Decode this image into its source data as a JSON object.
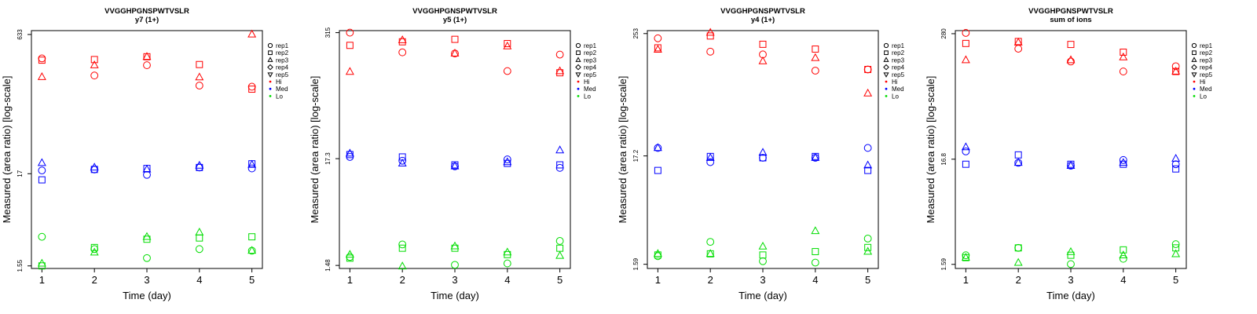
{
  "chart_data": [
    {
      "type": "scatter",
      "title": "VVGGHPGNSPWTVSLR",
      "subtitle": "y7 (1+)",
      "xlabel": "Time (day)",
      "ylabel": "Measured (area ratio) [log-scale]",
      "log_y": true,
      "x_ticks": [
        "1",
        "2",
        "3",
        "4",
        "5"
      ],
      "y_ticks": [
        {
          "value": 1.55,
          "label": "1.55"
        },
        {
          "value": 17,
          "label": "17"
        },
        {
          "value": 633,
          "label": "633"
        }
      ],
      "xlim": [
        0.8,
        5.2
      ],
      "ylim": [
        1.45,
        700
      ],
      "legend": {
        "position": "right",
        "replicates": [
          "rep1",
          "rep2",
          "rep3",
          "rep4",
          "rep5"
        ],
        "groups": [
          "Hi",
          "Med",
          "Lo"
        ]
      },
      "series": [
        {
          "group": "Hi",
          "replicate": "rep1",
          "x": [
            1,
            2,
            3,
            4,
            5
          ],
          "y": [
            340,
            218,
            285,
            168,
            163
          ]
        },
        {
          "group": "Hi",
          "replicate": "rep2",
          "x": [
            1,
            2,
            3,
            4,
            5
          ],
          "y": [
            325,
            330,
            355,
            290,
            153
          ]
        },
        {
          "group": "Hi",
          "replicate": "rep3",
          "x": [
            1,
            2,
            3,
            4,
            5
          ],
          "y": [
            210,
            285,
            355,
            208,
            635
          ]
        },
        {
          "group": "Med",
          "replicate": "rep1",
          "x": [
            1,
            2,
            3,
            4,
            5
          ],
          "y": [
            18.5,
            19,
            16.5,
            20,
            19.5
          ]
        },
        {
          "group": "Med",
          "replicate": "rep2",
          "x": [
            1,
            2,
            3,
            4,
            5
          ],
          "y": [
            14.5,
            19,
            19.5,
            20,
            22
          ]
        },
        {
          "group": "Med",
          "replicate": "rep3",
          "x": [
            1,
            2,
            3,
            4,
            5
          ],
          "y": [
            22.5,
            20,
            19,
            21,
            21.5
          ]
        },
        {
          "group": "Lo",
          "replicate": "rep1",
          "x": [
            1,
            2,
            3,
            4,
            5
          ],
          "y": [
            3.3,
            2.4,
            1.9,
            2.4,
            2.3
          ]
        },
        {
          "group": "Lo",
          "replicate": "rep2",
          "x": [
            1,
            2,
            3,
            4,
            5
          ],
          "y": [
            1.55,
            2.5,
            3.1,
            3.2,
            3.3
          ]
        },
        {
          "group": "Lo",
          "replicate": "rep3",
          "x": [
            1,
            2,
            3,
            4,
            5
          ],
          "y": [
            1.65,
            2.2,
            3.3,
            3.7,
            2.3
          ]
        }
      ]
    },
    {
      "type": "scatter",
      "title": "VVGGHPGNSPWTVSLR",
      "subtitle": "y5 (1+)",
      "xlabel": "Time (day)",
      "ylabel": "Measured (area ratio) [log-scale]",
      "log_y": true,
      "x_ticks": [
        "1",
        "2",
        "3",
        "4",
        "5"
      ],
      "y_ticks": [
        {
          "value": 1.48,
          "label": "1.48"
        },
        {
          "value": 17.3,
          "label": "17.3"
        },
        {
          "value": 315,
          "label": "315"
        }
      ],
      "xlim": [
        0.8,
        5.2
      ],
      "ylim": [
        1.38,
        330
      ],
      "legend": {
        "position": "right",
        "replicates": [
          "rep1",
          "rep2",
          "rep3",
          "rep4",
          "rep5"
        ],
        "groups": [
          "Hi",
          "Med",
          "Lo"
        ]
      },
      "series": [
        {
          "group": "Hi",
          "replicate": "rep1",
          "x": [
            1,
            2,
            3,
            4,
            5
          ],
          "y": [
            315,
            200,
            195,
            130,
            190
          ]
        },
        {
          "group": "Hi",
          "replicate": "rep2",
          "x": [
            1,
            2,
            3,
            4,
            5
          ],
          "y": [
            235,
            255,
            270,
            245,
            125
          ]
        },
        {
          "group": "Hi",
          "replicate": "rep3",
          "x": [
            1,
            2,
            3,
            4,
            5
          ],
          "y": [
            128,
            265,
            195,
            230,
            130
          ]
        },
        {
          "group": "Med",
          "replicate": "rep1",
          "x": [
            1,
            2,
            3,
            4,
            5
          ],
          "y": [
            18,
            16.5,
            14.5,
            17,
            14
          ]
        },
        {
          "group": "Med",
          "replicate": "rep2",
          "x": [
            1,
            2,
            3,
            4,
            5
          ],
          "y": [
            19,
            18,
            15,
            15.5,
            15
          ]
        },
        {
          "group": "Med",
          "replicate": "rep3",
          "x": [
            1,
            2,
            3,
            4,
            5
          ],
          "y": [
            19.5,
            15.5,
            14.5,
            16,
            21
          ]
        },
        {
          "group": "Lo",
          "replicate": "rep1",
          "x": [
            1,
            2,
            3,
            4,
            5
          ],
          "y": [
            1.8,
            2.4,
            1.5,
            1.55,
            2.6
          ]
        },
        {
          "group": "Lo",
          "replicate": "rep2",
          "x": [
            1,
            2,
            3,
            4,
            5
          ],
          "y": [
            1.75,
            2.2,
            2.2,
            1.9,
            2.2
          ]
        },
        {
          "group": "Lo",
          "replicate": "rep3",
          "x": [
            1,
            2,
            3,
            4,
            5
          ],
          "y": [
            1.9,
            1.45,
            2.3,
            2.0,
            1.85
          ]
        }
      ]
    },
    {
      "type": "scatter",
      "title": "VVGGHPGNSPWTVSLR",
      "subtitle": "y4 (1+)",
      "xlabel": "Time (day)",
      "ylabel": "Measured (area ratio) [log-scale]",
      "log_y": true,
      "x_ticks": [
        "1",
        "2",
        "3",
        "4",
        "5"
      ],
      "y_ticks": [
        {
          "value": 1.59,
          "label": "1.59"
        },
        {
          "value": 17.2,
          "label": "17.2"
        },
        {
          "value": 253,
          "label": "253"
        }
      ],
      "xlim": [
        0.8,
        5.2
      ],
      "ylim": [
        1.45,
        270
      ],
      "legend": {
        "position": "right",
        "replicates": [
          "rep1",
          "rep2",
          "rep3",
          "rep4",
          "rep5"
        ],
        "groups": [
          "Hi",
          "Med",
          "Lo"
        ]
      },
      "series": [
        {
          "group": "Hi",
          "replicate": "rep1",
          "x": [
            1,
            2,
            3,
            4,
            5
          ],
          "y": [
            228,
            170,
            160,
            112,
            115
          ]
        },
        {
          "group": "Hi",
          "replicate": "rep2",
          "x": [
            1,
            2,
            3,
            4,
            5
          ],
          "y": [
            185,
            240,
            200,
            180,
            115
          ]
        },
        {
          "group": "Hi",
          "replicate": "rep3",
          "x": [
            1,
            2,
            3,
            4,
            5
          ],
          "y": [
            178,
            258,
            138,
            148,
            68
          ]
        },
        {
          "group": "Med",
          "replicate": "rep1",
          "x": [
            1,
            2,
            3,
            4,
            5
          ],
          "y": [
            20.5,
            15,
            16.5,
            16.5,
            20.5
          ]
        },
        {
          "group": "Med",
          "replicate": "rep2",
          "x": [
            1,
            2,
            3,
            4,
            5
          ],
          "y": [
            12.5,
            17,
            16.5,
            17,
            12.5
          ]
        },
        {
          "group": "Med",
          "replicate": "rep3",
          "x": [
            1,
            2,
            3,
            4,
            5
          ],
          "y": [
            20.5,
            16.5,
            18.5,
            16.5,
            14
          ]
        },
        {
          "group": "Lo",
          "replicate": "rep1",
          "x": [
            1,
            2,
            3,
            4,
            5
          ],
          "y": [
            1.9,
            2.6,
            1.7,
            1.65,
            2.8
          ]
        },
        {
          "group": "Lo",
          "replicate": "rep2",
          "x": [
            1,
            2,
            3,
            4,
            5
          ],
          "y": [
            1.95,
            2.0,
            1.95,
            2.1,
            2.3
          ]
        },
        {
          "group": "Lo",
          "replicate": "rep3",
          "x": [
            1,
            2,
            3,
            4,
            5
          ],
          "y": [
            2.0,
            2.0,
            2.35,
            3.3,
            2.1
          ]
        }
      ]
    },
    {
      "type": "scatter",
      "title": "VVGGHPGNSPWTVSLR",
      "subtitle": "sum of ions",
      "xlabel": "Time (day)",
      "ylabel": "Measured (area ratio) [log-scale]",
      "log_y": true,
      "x_ticks": [
        "1",
        "2",
        "3",
        "4",
        "5"
      ],
      "y_ticks": [
        {
          "value": 1.59,
          "label": "1.59"
        },
        {
          "value": 16.8,
          "label": "16.8"
        },
        {
          "value": 280,
          "label": "280"
        }
      ],
      "xlim": [
        0.8,
        5.2
      ],
      "ylim": [
        1.45,
        300
      ],
      "legend": {
        "position": "right",
        "replicates": [
          "rep1",
          "rep2",
          "rep3",
          "rep4",
          "rep5"
        ],
        "groups": [
          "Hi",
          "Med",
          "Lo"
        ]
      },
      "series": [
        {
          "group": "Hi",
          "replicate": "rep1",
          "x": [
            1,
            2,
            3,
            4,
            5
          ],
          "y": [
            285,
            200,
            150,
            120,
            135
          ]
        },
        {
          "group": "Hi",
          "replicate": "rep2",
          "x": [
            1,
            2,
            3,
            4,
            5
          ],
          "y": [
            225,
            235,
            220,
            185,
            120
          ]
        },
        {
          "group": "Hi",
          "replicate": "rep3",
          "x": [
            1,
            2,
            3,
            4,
            5
          ],
          "y": [
            155,
            230,
            155,
            165,
            120
          ]
        },
        {
          "group": "Med",
          "replicate": "rep1",
          "x": [
            1,
            2,
            3,
            4,
            5
          ],
          "y": [
            20,
            15.5,
            14.5,
            16.5,
            15
          ]
        },
        {
          "group": "Med",
          "replicate": "rep2",
          "x": [
            1,
            2,
            3,
            4,
            5
          ],
          "y": [
            15,
            18.5,
            15,
            15,
            13.5
          ]
        },
        {
          "group": "Med",
          "replicate": "rep3",
          "x": [
            1,
            2,
            3,
            4,
            5
          ],
          "y": [
            22,
            15.5,
            14.5,
            15.5,
            17
          ]
        },
        {
          "group": "Lo",
          "replicate": "rep1",
          "x": [
            1,
            2,
            3,
            4,
            5
          ],
          "y": [
            1.95,
            2.3,
            1.6,
            1.8,
            2.5
          ]
        },
        {
          "group": "Lo",
          "replicate": "rep2",
          "x": [
            1,
            2,
            3,
            4,
            5
          ],
          "y": [
            1.85,
            2.3,
            1.95,
            2.2,
            2.3
          ]
        },
        {
          "group": "Lo",
          "replicate": "rep3",
          "x": [
            1,
            2,
            3,
            4,
            5
          ],
          "y": [
            1.85,
            1.65,
            2.1,
            1.95,
            2.0
          ]
        }
      ]
    }
  ],
  "colors": {
    "Hi": "#ff0000",
    "Med": "#0000ff",
    "Lo": "#00dd00",
    "axis": "#000000"
  },
  "marker_shapes": {
    "rep1": "circle",
    "rep2": "square",
    "rep3": "triangle-up",
    "rep4": "diamond",
    "rep5": "triangle-down"
  }
}
